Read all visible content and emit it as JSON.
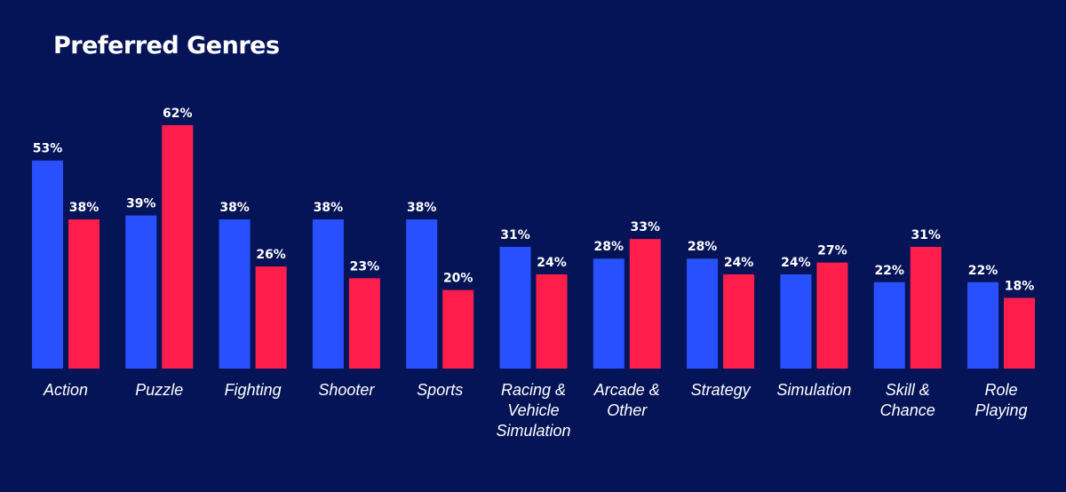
{
  "chart_data": {
    "type": "bar",
    "title": "Preferred Genres",
    "categories": [
      "Action",
      "Puzzle",
      "Fighting",
      "Shooter",
      "Sports",
      "Racing & Vehicle Simulation",
      "Arcade & Other",
      "Strategy",
      "Simulation",
      "Skill & Chance",
      "Role Playing"
    ],
    "series": [
      {
        "values": [
          53,
          39,
          38,
          38,
          38,
          31,
          28,
          28,
          24,
          22,
          22
        ],
        "color": "#2850FF"
      },
      {
        "values": [
          38,
          62,
          26,
          23,
          20,
          24,
          33,
          24,
          27,
          31,
          18
        ],
        "color": "#FF1E4B"
      }
    ],
    "value_suffix": "%",
    "ylim": [
      0,
      70
    ],
    "grid": false,
    "legend": "none"
  }
}
